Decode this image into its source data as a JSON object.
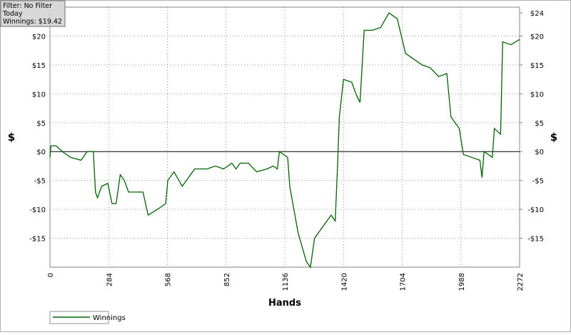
{
  "chart_data": {
    "type": "line",
    "info": [
      "Filter: No Filter",
      "Today",
      "Winnings: $19.42"
    ],
    "xlabel": "Hands",
    "ylabel": "$",
    "y2label": "$",
    "x": [
      0,
      5,
      30,
      60,
      100,
      150,
      180,
      210,
      220,
      230,
      250,
      280,
      300,
      320,
      340,
      360,
      380,
      420,
      450,
      475,
      520,
      560,
      570,
      600,
      640,
      700,
      760,
      800,
      840,
      880,
      900,
      920,
      960,
      1000,
      1050,
      1080,
      1100,
      1110,
      1150,
      1160,
      1200,
      1240,
      1260,
      1280,
      1320,
      1360,
      1380,
      1390,
      1400,
      1420,
      1460,
      1480,
      1500,
      1520,
      1560,
      1600,
      1640,
      1680,
      1700,
      1720,
      1760,
      1800,
      1840,
      1880,
      1920,
      1940,
      1980,
      2000,
      2040,
      2080,
      2090,
      2100,
      2140,
      2150,
      2180,
      2190,
      2230,
      2272
    ],
    "series": [
      {
        "name": "Winnings",
        "color": "#006400",
        "values": [
          -1,
          1,
          1,
          0,
          -1,
          -1.5,
          0,
          0,
          -7,
          -8,
          -6,
          -5.5,
          -9,
          -9,
          -4,
          -5,
          -7,
          -7,
          -7,
          -11,
          -10,
          -9,
          -5,
          -3.5,
          -6,
          -3,
          -3,
          -2.5,
          -3,
          -2,
          -3,
          -2,
          -2,
          -3.5,
          -3,
          -2.5,
          -3,
          0,
          -1,
          -6,
          -14,
          -19,
          -20,
          -15,
          -13,
          -11,
          -12,
          -3.5,
          6,
          12.5,
          12,
          10,
          8.5,
          21,
          21,
          21.5,
          24,
          23,
          20,
          17,
          16,
          15,
          14.5,
          13,
          13.5,
          6,
          4,
          -0.5,
          -1,
          -1.5,
          -4.5,
          0,
          -1,
          4,
          3,
          19,
          18.5,
          19.42
        ]
      }
    ],
    "xlim": [
      0,
      2272
    ],
    "xticks": [
      0,
      284,
      568,
      852,
      1136,
      1420,
      1704,
      1988,
      2272
    ],
    "ylim": [
      -20,
      25
    ],
    "yticks": [
      {
        "value": -15,
        "label": "-$15"
      },
      {
        "value": -10,
        "label": "-$10"
      },
      {
        "value": -5,
        "label": "-$5"
      },
      {
        "value": 0,
        "label": "$0"
      },
      {
        "value": 5,
        "label": "$5"
      },
      {
        "value": 10,
        "label": "$10"
      },
      {
        "value": 15,
        "label": "$15"
      },
      {
        "value": 20,
        "label": "$20"
      }
    ],
    "y2lim": [
      -20,
      25
    ],
    "y2ticks": [
      {
        "value": -15,
        "label": "-$15"
      },
      {
        "value": -10,
        "label": "-$10"
      },
      {
        "value": -5,
        "label": "-$5"
      },
      {
        "value": 0,
        "label": "$0"
      },
      {
        "value": 5,
        "label": "$5"
      },
      {
        "value": 10,
        "label": "$10"
      },
      {
        "value": 15,
        "label": "$15"
      },
      {
        "value": 20,
        "label": "$20"
      },
      {
        "value": 24,
        "label": "$24"
      }
    ],
    "grid": true
  }
}
